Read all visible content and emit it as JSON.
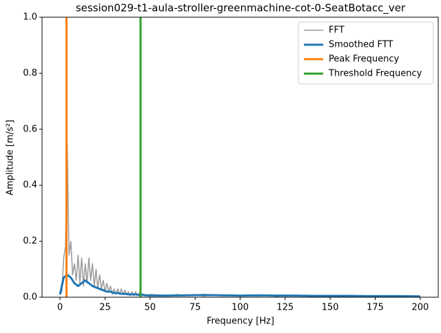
{
  "chart_data": {
    "type": "line",
    "title": "session029-t1-aula-stroller-greenmachine-cot-0-SeatBotacc_ver",
    "x_label": "Frequency [Hz]",
    "y_label": "Amplitude [m/s²]",
    "xlim": [
      -10,
      210
    ],
    "ylim": [
      0,
      1
    ],
    "xticks": [
      0,
      25,
      50,
      75,
      100,
      125,
      150,
      175,
      200
    ],
    "yticks": [
      {
        "value": 0,
        "label": "0.0"
      },
      {
        "value": 0.2,
        "label": "0.2"
      },
      {
        "value": 0.4,
        "label": "0.4"
      },
      {
        "value": 0.6,
        "label": "0.6"
      },
      {
        "value": 0.8,
        "label": "0.8"
      },
      {
        "value": 1,
        "label": "1.0"
      }
    ],
    "legend": "upper right",
    "series": [
      {
        "name": "FFT",
        "color": "#999999",
        "width": 1.5,
        "x": [
          0,
          1,
          2,
          3,
          4,
          5,
          6,
          7,
          8,
          9,
          10,
          11,
          12,
          13,
          14,
          15,
          16,
          17,
          18,
          19,
          20,
          21,
          22,
          23,
          24,
          25,
          26,
          27,
          28,
          29,
          30,
          31,
          32,
          33,
          34,
          35,
          36,
          37,
          38,
          39,
          40,
          41,
          42,
          43,
          44,
          45,
          46,
          47,
          48,
          49,
          50,
          55,
          60,
          65,
          70,
          75,
          80,
          85,
          90,
          95,
          100,
          105,
          110,
          115,
          120,
          125,
          130,
          135,
          140,
          145,
          150,
          155,
          160,
          165,
          170,
          175,
          180,
          185,
          190,
          195,
          200
        ],
        "values": [
          0.01,
          0.02,
          0.14,
          0.18,
          0.55,
          0.15,
          0.2,
          0.08,
          0.12,
          0.06,
          0.15,
          0.05,
          0.14,
          0.04,
          0.12,
          0.05,
          0.14,
          0.06,
          0.12,
          0.04,
          0.1,
          0.03,
          0.08,
          0.03,
          0.06,
          0.02,
          0.05,
          0.02,
          0.04,
          0.01,
          0.03,
          0.01,
          0.03,
          0.01,
          0.03,
          0.01,
          0.025,
          0.01,
          0.02,
          0.005,
          0.02,
          0.005,
          0.02,
          0.005,
          0.015,
          0.01,
          0.012,
          0.005,
          0.01,
          0.005,
          0.01,
          0.008,
          0.004,
          0.01,
          0.005,
          0.009,
          0.004,
          0.008,
          0.005,
          0.009,
          0.004,
          0.008,
          0.004,
          0.007,
          0.003,
          0.007,
          0.004,
          0.006,
          0.003,
          0.006,
          0.003,
          0.006,
          0.003,
          0.005,
          0.003,
          0.005,
          0.002,
          0.005,
          0.002,
          0.004,
          0.002
        ]
      },
      {
        "name": "Smoothed FTT",
        "color": "#1f77b4",
        "width": 3,
        "x": [
          0,
          2,
          4,
          6,
          8,
          10,
          12,
          14,
          16,
          18,
          20,
          22,
          24,
          26,
          28,
          30,
          32,
          34,
          36,
          38,
          40,
          42,
          44,
          46,
          48,
          50,
          60,
          70,
          80,
          90,
          100,
          110,
          120,
          130,
          140,
          150,
          160,
          170,
          180,
          190,
          200
        ],
        "values": [
          0.01,
          0.07,
          0.08,
          0.07,
          0.05,
          0.04,
          0.05,
          0.06,
          0.05,
          0.04,
          0.035,
          0.03,
          0.025,
          0.02,
          0.02,
          0.015,
          0.015,
          0.012,
          0.012,
          0.01,
          0.01,
          0.01,
          0.008,
          0.008,
          0.007,
          0.006,
          0.006,
          0.007,
          0.008,
          0.007,
          0.006,
          0.007,
          0.006,
          0.006,
          0.005,
          0.005,
          0.005,
          0.004,
          0.004,
          0.004,
          0.003
        ]
      }
    ],
    "vlines": [
      {
        "name": "Peak Frequency",
        "color": "#ff7f0e",
        "x": 3.6
      },
      {
        "name": "Threshold Frequency",
        "color": "#2ca02c",
        "x": 44.7
      }
    ]
  }
}
